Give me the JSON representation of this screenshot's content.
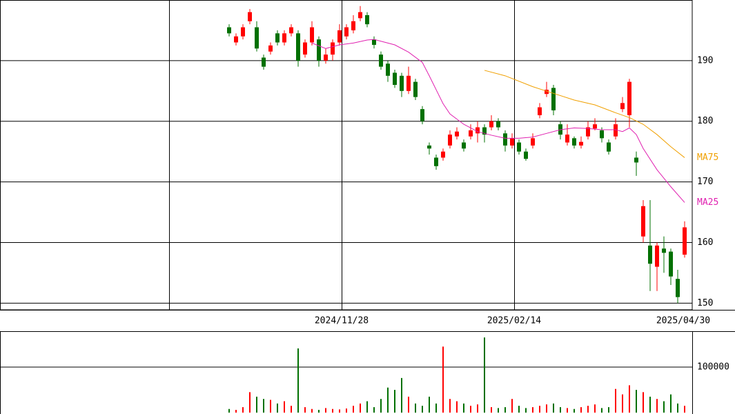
{
  "chart_data": [
    {
      "type": "candlestick",
      "categories": [
        null,
        null,
        null,
        null,
        null,
        null,
        null,
        null,
        null,
        null,
        null,
        null,
        null,
        null,
        null,
        null,
        null,
        null,
        null,
        null,
        null,
        null,
        null,
        null,
        null,
        null,
        null,
        null,
        null,
        null,
        null,
        null,
        null,
        null,
        null,
        null,
        null,
        null,
        null,
        null,
        null,
        null,
        null,
        null,
        null,
        null,
        null,
        null,
        null,
        null,
        null,
        null,
        null,
        null,
        null,
        null,
        null,
        null,
        null,
        null,
        null,
        null,
        null,
        null,
        null,
        null,
        null
      ],
      "open": [
        195.5,
        193,
        194,
        196.5,
        195.5,
        190.5,
        191.5,
        194.5,
        193,
        194.5,
        194.5,
        191,
        193,
        193.5,
        190,
        191,
        193,
        194,
        195,
        197,
        197.5,
        193.5,
        191,
        189.5,
        188,
        187.5,
        185,
        186.5,
        182,
        176,
        174,
        174,
        176,
        177.5,
        176.5,
        177.5,
        178,
        179,
        179,
        180,
        178,
        176,
        176.5,
        175,
        176,
        181,
        184.5,
        185.5,
        179.5,
        176.5,
        177.2,
        176,
        177.5,
        178.8,
        178.5,
        176.5,
        177.5,
        182,
        181,
        174,
        161,
        159.5,
        156,
        159,
        158.5,
        154,
        158
      ],
      "high": [
        196,
        194.5,
        196,
        198.5,
        196.5,
        191,
        193,
        195,
        195,
        196,
        195,
        193.5,
        196.5,
        194,
        192,
        193.5,
        196,
        196,
        197.5,
        199,
        198,
        194,
        191.5,
        190,
        188.5,
        188,
        189,
        187,
        182.5,
        176.5,
        174.5,
        175.5,
        178.5,
        179,
        177,
        179.5,
        180,
        179.5,
        181,
        180.5,
        178.5,
        178,
        177,
        175.5,
        178,
        183,
        186.5,
        186,
        180,
        179.5,
        177.5,
        177.5,
        180,
        180.5,
        179,
        177,
        180.5,
        184,
        187,
        175,
        167,
        167,
        160,
        161,
        159,
        155.5,
        163.5
      ],
      "low": [
        194,
        192.5,
        193.5,
        196,
        191.5,
        188.5,
        191,
        192.5,
        192.5,
        194,
        189,
        190.5,
        192.5,
        189,
        189.5,
        190,
        192.5,
        193.5,
        194.5,
        196.5,
        195.5,
        192,
        188.5,
        186.5,
        185.5,
        184,
        184.5,
        183.5,
        179.5,
        174.5,
        172,
        173.5,
        175.5,
        177,
        175,
        177,
        176.5,
        176.5,
        178.5,
        178.5,
        175,
        175.5,
        174.5,
        173.5,
        175.5,
        180.5,
        184,
        181,
        177,
        176,
        175.5,
        175.5,
        177,
        178.5,
        176.5,
        174.5,
        177,
        181.5,
        179,
        171,
        160,
        152,
        152,
        155,
        153,
        150,
        157.5
      ],
      "close": [
        194.5,
        194,
        195.5,
        198,
        192,
        189,
        192.5,
        193,
        194.5,
        195.5,
        190,
        193,
        195.5,
        190,
        191,
        193,
        195,
        195.5,
        196.5,
        198,
        196,
        192.6,
        189,
        187.5,
        186,
        185,
        187.5,
        184,
        180,
        175.5,
        172.6,
        175,
        177.8,
        178.3,
        175.5,
        178.5,
        179,
        177.8,
        180,
        179,
        176,
        177.2,
        175,
        173.8,
        177.2,
        182.3,
        185.2,
        181.8,
        177.8,
        177.8,
        176,
        176.6,
        179,
        179.5,
        177.2,
        175,
        179.5,
        183,
        186.5,
        173.2,
        166,
        156.5,
        159.5,
        158.3,
        154.4,
        151,
        162.5
      ],
      "up_color": "#ff0000",
      "down_color": "#007000",
      "series": [
        {
          "name": "MA25",
          "color": "#e020b0",
          "x": [
            12,
            14,
            16,
            18,
            20,
            21,
            22,
            24,
            26,
            28,
            29,
            30,
            31,
            32,
            34,
            36,
            38,
            40,
            42,
            44,
            46,
            48,
            50,
            52,
            54,
            56,
            57,
            58,
            59,
            60,
            62,
            64,
            66
          ],
          "values": [
            192.9,
            192.0,
            192.6,
            192.9,
            193.4,
            193.5,
            193.2,
            192.6,
            191.4,
            189.7,
            187.5,
            185.2,
            182.9,
            181.2,
            179.5,
            178.3,
            177.7,
            177.2,
            177.2,
            177.4,
            178.0,
            178.6,
            178.9,
            178.8,
            178.6,
            178.6,
            178.3,
            178.9,
            177.8,
            175.5,
            172.0,
            169.2,
            166.6
          ]
        },
        {
          "name": "MA75",
          "color": "#f0a000",
          "x": [
            37,
            40,
            44,
            47,
            50,
            53,
            56,
            58,
            60,
            62,
            64,
            66
          ],
          "values": [
            188.4,
            187.5,
            185.7,
            184.6,
            183.5,
            182.7,
            181.4,
            180.6,
            179.5,
            177.8,
            175.8,
            174.0
          ]
        }
      ],
      "xlim": [
        -33.2,
        67.1
      ],
      "xticks": [
        {
          "value": 16.3,
          "label": "2024/11/28"
        },
        {
          "value": 41.3,
          "label": "2025/02/14"
        },
        {
          "value": 65.8,
          "label": "2025/04/30"
        }
      ],
      "ylim": [
        148.9,
        200
      ],
      "yticks": [
        150,
        160,
        170,
        180,
        190
      ],
      "grid": true
    },
    {
      "type": "bar",
      "values": [
        8000,
        6000,
        12000,
        45000,
        35000,
        30000,
        28000,
        20000,
        25000,
        15000,
        141000,
        12000,
        8000,
        6000,
        10000,
        8000,
        7000,
        9000,
        15000,
        20000,
        25000,
        12000,
        30000,
        55000,
        50000,
        76000,
        35000,
        20000,
        15000,
        35000,
        20000,
        145000,
        30000,
        25000,
        20000,
        15000,
        18000,
        165000,
        12000,
        10000,
        12000,
        30000,
        15000,
        10000,
        12000,
        15000,
        18000,
        20000,
        12000,
        10000,
        8000,
        12000,
        15000,
        18000,
        10000,
        12000,
        52000,
        40000,
        60000,
        50000,
        45000,
        35000,
        30000,
        25000,
        40000,
        20000,
        15000
      ],
      "ylim": [
        0,
        178800
      ],
      "yticks": [
        100000
      ],
      "grid": true
    }
  ]
}
